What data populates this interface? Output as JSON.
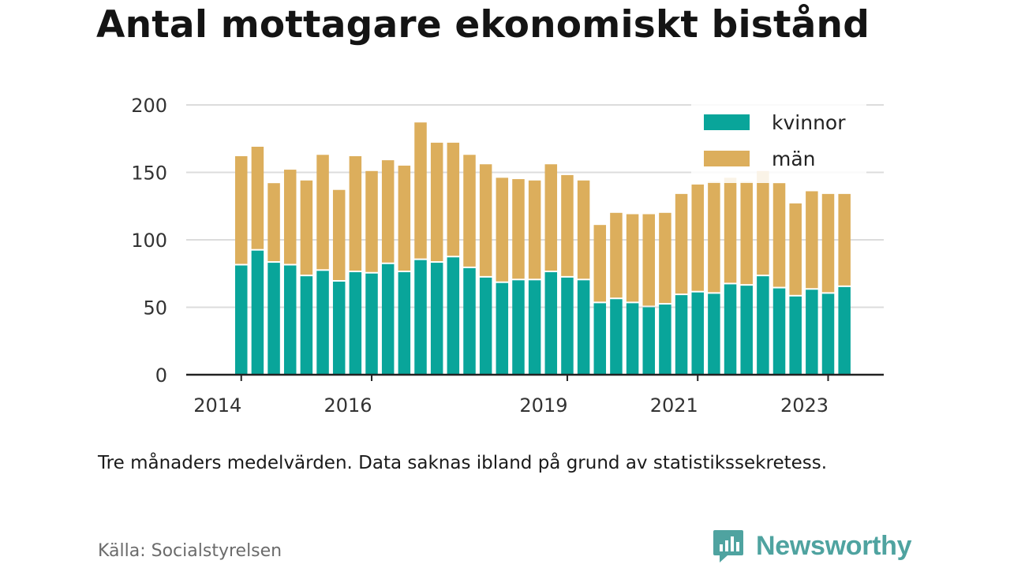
{
  "title": "Antal mottagare ekonomiskt bistånd",
  "note": "Tre månaders medelvärden. Data saknas ibland på grund av statistikssekretess.",
  "source": "Källa: Socialstyrelsen",
  "brand": {
    "name": "Newsworthy",
    "icon": "newsworthy-logo-icon",
    "color": "#4fa3a0"
  },
  "chart_data": {
    "type": "bar",
    "stacked": true,
    "y_ticks": [
      0,
      50,
      100,
      150,
      200
    ],
    "ylim": [
      0,
      200
    ],
    "grid": true,
    "legend_position": "top-right",
    "x_tick_labels": [
      {
        "label": "2014",
        "index": 0
      },
      {
        "label": "2016",
        "index": 8
      },
      {
        "label": "2019",
        "index": 20
      },
      {
        "label": "2021",
        "index": 28
      },
      {
        "label": "2023",
        "index": 36
      }
    ],
    "series": [
      {
        "name": "kvinnor",
        "color": "#09a59a",
        "values": [
          81,
          92,
          83,
          81,
          73,
          77,
          69,
          76,
          75,
          82,
          76,
          85,
          83,
          87,
          79,
          72,
          68,
          70,
          70,
          76,
          72,
          70,
          53,
          56,
          53,
          50,
          52,
          59,
          61,
          60,
          67,
          66,
          73,
          64,
          58,
          63,
          60,
          65
        ]
      },
      {
        "name": "män",
        "color": "#dcae5c",
        "values": [
          81,
          77,
          59,
          71,
          71,
          86,
          68,
          86,
          76,
          77,
          79,
          102,
          89,
          85,
          84,
          84,
          78,
          75,
          74,
          80,
          76,
          74,
          58,
          64,
          66,
          69,
          68,
          75,
          80,
          83,
          79,
          77,
          78,
          78,
          69,
          73,
          74,
          69
        ]
      }
    ]
  }
}
